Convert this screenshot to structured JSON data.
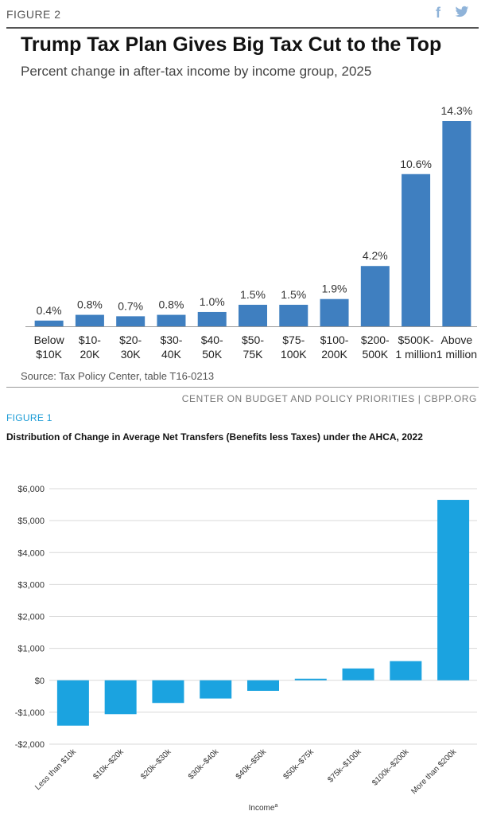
{
  "figure1": {
    "label": "FIGURE 2",
    "title": "Trump Tax Plan Gives Big Tax Cut to the Top",
    "subtitle": "Percent change in after-tax income by income group, 2025",
    "source": "Source: Tax Policy Center, table T16-0213",
    "credit": "CENTER ON BUDGET AND POLICY PRIORITIES | CBPP.ORG",
    "social": {
      "facebook": "f",
      "twitter": "twitter-icon"
    }
  },
  "figure2": {
    "label": "FIGURE 1",
    "title": "Distribution of Change in Average Net Transfers (Benefits less Taxes) under the AHCA, 2022"
  },
  "colors": {
    "bar1": "#3f7fc0",
    "bar2": "#1ba3e0",
    "grid": "#d9d9d9",
    "axis": "#999999"
  },
  "chart_data": [
    {
      "type": "bar",
      "title": "Trump Tax Plan Gives Big Tax Cut to the Top",
      "ylabel": "Percent change in after-tax income",
      "categories": [
        [
          "Below",
          "$10K"
        ],
        [
          "$10-",
          "20K"
        ],
        [
          "$20-",
          "30K"
        ],
        [
          "$30-",
          "40K"
        ],
        [
          "$40-",
          "50K"
        ],
        [
          "$50-",
          "75K"
        ],
        [
          "$75-",
          "100K"
        ],
        [
          "$100-",
          "200K"
        ],
        [
          "$200-",
          "500K"
        ],
        [
          "$500K-",
          "1 million"
        ],
        [
          "Above",
          "1 million"
        ]
      ],
      "values": [
        0.4,
        0.8,
        0.7,
        0.8,
        1.0,
        1.5,
        1.5,
        1.9,
        4.2,
        10.6,
        14.3
      ],
      "data_labels": [
        "0.4%",
        "0.8%",
        "0.7%",
        "0.8%",
        "1.0%",
        "1.5%",
        "1.5%",
        "1.9%",
        "4.2%",
        "10.6%",
        "14.3%"
      ],
      "ylim": [
        0,
        14.3
      ],
      "grid": false
    },
    {
      "type": "bar",
      "title": "Distribution of Change in Average Net Transfers (Benefits less Taxes) under the AHCA, 2022",
      "xlabel": "Income",
      "xlabel_superscript": "a",
      "categories": [
        "Less than $10k",
        "$10k–$20k",
        "$20k–$30k",
        "$30k–$40k",
        "$40k–$50k",
        "$50k–$75k",
        "$75k–$100k",
        "$100k–$200k",
        "More than $200k"
      ],
      "values": [
        -1420,
        -1060,
        -710,
        -570,
        -330,
        50,
        370,
        600,
        5650
      ],
      "yticks": [
        6000,
        5000,
        4000,
        3000,
        2000,
        1000,
        0,
        -1000,
        -2000
      ],
      "ytick_labels": [
        "$6,000",
        "$5,000",
        "$4,000",
        "$3,000",
        "$2,000",
        "$1,000",
        "$0",
        "-$1,000",
        "-$2,000"
      ],
      "ylim": [
        -2000,
        6000
      ],
      "grid": true
    }
  ]
}
